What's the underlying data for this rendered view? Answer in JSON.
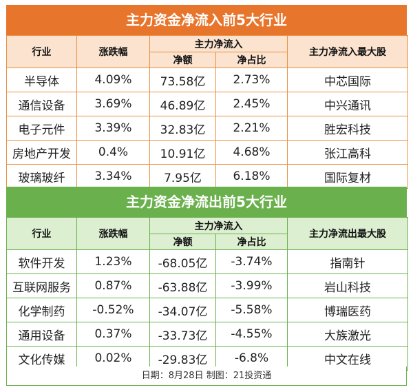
{
  "inflow": {
    "title": "主力资金净流入前5大行业",
    "headers": {
      "industry": "行业",
      "change": "涨跌幅",
      "group": "主力净流入",
      "net": "净额",
      "ratio": "净占比",
      "top_stock": "主力净流入最大股"
    },
    "rows": [
      {
        "industry": "半导体",
        "change": "4.09%",
        "net": "73.58亿",
        "ratio": "2.73%",
        "stock": "中芯国际"
      },
      {
        "industry": "通信设备",
        "change": "3.69%",
        "net": "46.89亿",
        "ratio": "2.45%",
        "stock": "中兴通讯"
      },
      {
        "industry": "电子元件",
        "change": "3.39%",
        "net": "32.83亿",
        "ratio": "2.21%",
        "stock": "胜宏科技"
      },
      {
        "industry": "房地产开发",
        "change": "0.4%",
        "net": "10.91亿",
        "ratio": "4.68%",
        "stock": "张江高科"
      },
      {
        "industry": "玻璃玻纤",
        "change": "3.34%",
        "net": "7.95亿",
        "ratio": "6.18%",
        "stock": "国际复材"
      }
    ]
  },
  "outflow": {
    "title": "主力资金净流出前5大行业",
    "headers": {
      "industry": "行业",
      "change": "涨跌幅",
      "group": "主力净流入",
      "net": "净额",
      "ratio": "净占比",
      "top_stock": "主力净流出最大股"
    },
    "rows": [
      {
        "industry": "软件开发",
        "change": "1.23%",
        "net": "-68.05亿",
        "ratio": "-3.74%",
        "stock": "指南针"
      },
      {
        "industry": "互联网服务",
        "change": "0.87%",
        "net": "-63.88亿",
        "ratio": "-3.99%",
        "stock": "岩山科技"
      },
      {
        "industry": "化学制药",
        "change": "-0.52%",
        "net": "-34.07亿",
        "ratio": "-5.58%",
        "stock": "博瑞医药"
      },
      {
        "industry": "通用设备",
        "change": "0.37%",
        "net": "-33.73亿",
        "ratio": "-4.55%",
        "stock": "大族激光"
      },
      {
        "industry": "文化传媒",
        "change": "0.02%",
        "net": "-29.83亿",
        "ratio": "-6.8%",
        "stock": "中文在线"
      }
    ]
  },
  "footer": "日期：8月28日 制图：21投资通",
  "colors": {
    "orange": "#e8752c",
    "green": "#6ab04c"
  }
}
